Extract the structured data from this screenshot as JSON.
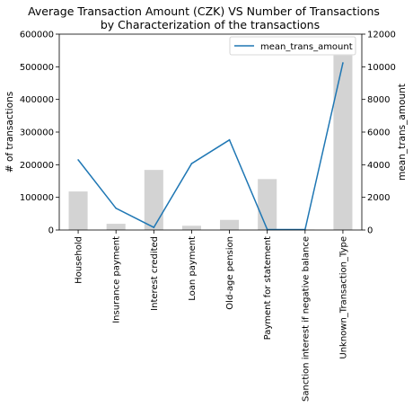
{
  "chart_data": {
    "type": "bar+line",
    "title_line1": "Average Transaction Amount (CZK) VS Number of Transactions",
    "title_line2": "by Characterization of the transactions",
    "categories": [
      "Household",
      "Insurance payment",
      "Interest credited",
      "Loan payment",
      "Old-age pension",
      "Payment for statement",
      "Sanction interest if negative balance",
      "Unknown_Transaction_Type"
    ],
    "bar_series": {
      "name": "# of transactions",
      "values": [
        118000,
        19000,
        184000,
        13000,
        31000,
        156000,
        1500,
        535000
      ],
      "color": "#d3d3d3"
    },
    "line_series": {
      "name": "mean_trans_amount",
      "values": [
        4300,
        1330,
        160,
        4070,
        5520,
        30,
        30,
        10240
      ],
      "color": "#1f77b4"
    },
    "ylabel_left": "# of transactions",
    "ylabel_right": "mean_trans_amount",
    "ylim_left": [
      0,
      600000
    ],
    "ylim_right": [
      0,
      12000
    ],
    "yticks_left": [
      "0",
      "100000",
      "200000",
      "300000",
      "400000",
      "500000",
      "600000"
    ],
    "yticks_right": [
      "0",
      "2000",
      "4000",
      "6000",
      "8000",
      "10000",
      "12000"
    ],
    "legend": {
      "position": "top-right",
      "entries": [
        "mean_trans_amount"
      ]
    },
    "grid": false
  }
}
